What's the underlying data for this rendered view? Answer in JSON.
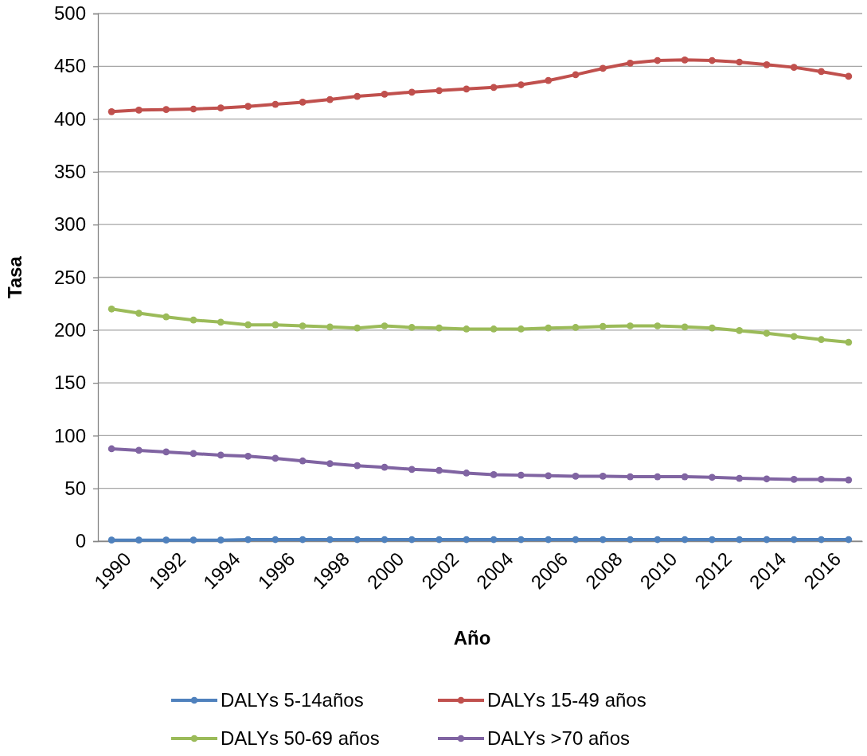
{
  "chart_data": {
    "type": "line",
    "xlabel": "Año",
    "ylabel": "Tasa",
    "categories": [
      "1990",
      null,
      "1992",
      null,
      "1994",
      null,
      "1996",
      null,
      "1998",
      null,
      "2000",
      null,
      "2002",
      null,
      "2004",
      null,
      "2006",
      null,
      "2008",
      null,
      "2010",
      null,
      "2012",
      null,
      "2014",
      null,
      "2016",
      null
    ],
    "series": [
      {
        "name": "DALYs 5-14años",
        "color": "#4f81bd",
        "values": [
          1,
          1,
          1,
          1,
          1,
          1.5,
          1.5,
          1.5,
          1.5,
          1.5,
          1.5,
          1.5,
          1.5,
          1.5,
          1.5,
          1.5,
          1.5,
          1.5,
          1.5,
          1.5,
          1.5,
          1.5,
          1.5,
          1.5,
          1.5,
          1.5,
          1.5,
          1.5
        ]
      },
      {
        "name": "DALYs 15-49 años",
        "color": "#c0504d",
        "values": [
          407,
          408.5,
          409,
          409.5,
          410.5,
          412,
          414,
          416,
          418.5,
          421.5,
          423.5,
          425.5,
          427,
          428.5,
          430,
          432.5,
          436.5,
          442,
          448,
          453,
          455.5,
          456,
          455.5,
          454,
          451.5,
          449,
          445,
          440.5
        ]
      },
      {
        "name": "DALYs 50-69 años",
        "color": "#9bbb59",
        "values": [
          220,
          216,
          212.5,
          209.5,
          207.5,
          205,
          205,
          204,
          203,
          202,
          204,
          202.5,
          202,
          201,
          201,
          201,
          202,
          202.5,
          203.5,
          204,
          204,
          203,
          202,
          199.5,
          197,
          194,
          191,
          188.5
        ]
      },
      {
        "name": "DALYs >70 años",
        "color": "#8064a2",
        "values": [
          87.5,
          86,
          84.5,
          83,
          81.5,
          80.5,
          78.5,
          76,
          73.5,
          71.5,
          70,
          68,
          67,
          64.5,
          63,
          62.5,
          62,
          61.5,
          61.5,
          61,
          61,
          61,
          60.5,
          59.5,
          59,
          58.5,
          58.5,
          58
        ]
      }
    ],
    "ylim": [
      0,
      500
    ],
    "yticks": [
      0,
      50,
      100,
      150,
      200,
      250,
      300,
      350,
      400,
      450,
      500
    ],
    "grid": "y",
    "legend": "bottom",
    "marker": "circle",
    "line_style": "solid"
  }
}
